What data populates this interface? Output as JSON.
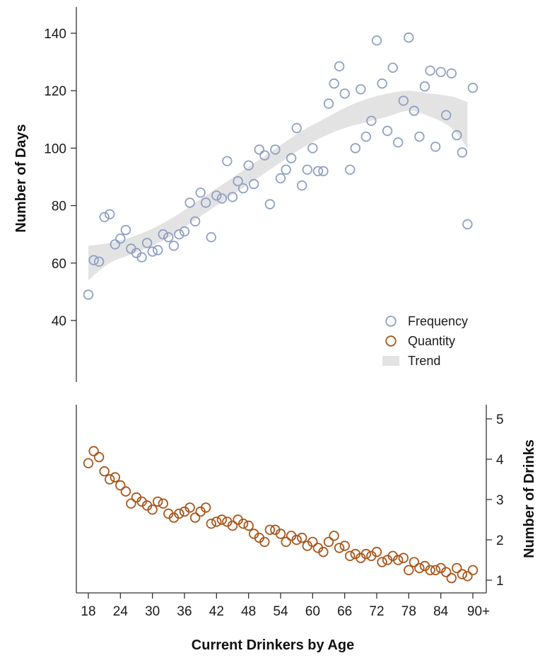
{
  "chart_data": {
    "type": "scatter",
    "xlabel": "Current Drinkers by Age",
    "x_range": [
      18,
      90
    ],
    "x_ticks": [
      {
        "value": 18,
        "label": "18"
      },
      {
        "value": 24,
        "label": "24"
      },
      {
        "value": 30,
        "label": "30"
      },
      {
        "value": 36,
        "label": "36"
      },
      {
        "value": 42,
        "label": "42"
      },
      {
        "value": 48,
        "label": "48"
      },
      {
        "value": 54,
        "label": "54"
      },
      {
        "value": 60,
        "label": "60"
      },
      {
        "value": 66,
        "label": "66"
      },
      {
        "value": 72,
        "label": "72"
      },
      {
        "value": 78,
        "label": "78"
      },
      {
        "value": 84,
        "label": "84"
      },
      {
        "value": 90,
        "label": "90+"
      }
    ],
    "y_left": {
      "label": "Number of Days",
      "ticks": [
        40,
        60,
        80,
        100,
        120,
        140
      ],
      "range": [
        40,
        140
      ]
    },
    "y_right": {
      "label": "Number of Drinks",
      "ticks": [
        1,
        2,
        3,
        4,
        5
      ],
      "range": [
        1,
        5
      ]
    },
    "legend": {
      "position": "right-middle",
      "entries": [
        {
          "label": "Frequency",
          "marker": "circle",
          "color": "#8fa0c4"
        },
        {
          "label": "Quantity",
          "marker": "circle",
          "color": "#a8551a"
        },
        {
          "label": "Trend",
          "marker": "band",
          "color": "#e3e3e3"
        }
      ]
    },
    "series": [
      {
        "name": "Frequency",
        "axis": "left",
        "color": "#8fa0c4",
        "points": [
          [
            18,
            49
          ],
          [
            19,
            61
          ],
          [
            20,
            60.5
          ],
          [
            21,
            76
          ],
          [
            22,
            77
          ],
          [
            23,
            66.5
          ],
          [
            24,
            68.5
          ],
          [
            25,
            71.5
          ],
          [
            26,
            65
          ],
          [
            27,
            63.5
          ],
          [
            28,
            62
          ],
          [
            29,
            67
          ],
          [
            30,
            64
          ],
          [
            31,
            64.5
          ],
          [
            32,
            70
          ],
          [
            33,
            69
          ],
          [
            34,
            66
          ],
          [
            35,
            70
          ],
          [
            36,
            71
          ],
          [
            37,
            81
          ],
          [
            38,
            74.5
          ],
          [
            39,
            84.5
          ],
          [
            40,
            81
          ],
          [
            41,
            69
          ],
          [
            42,
            83.5
          ],
          [
            43,
            82.5
          ],
          [
            44,
            95.5
          ],
          [
            45,
            83
          ],
          [
            46,
            88.5
          ],
          [
            47,
            86
          ],
          [
            48,
            94
          ],
          [
            49,
            87.5
          ],
          [
            50,
            99.5
          ],
          [
            51,
            97.5
          ],
          [
            52,
            80.5
          ],
          [
            53,
            99.5
          ],
          [
            54,
            89.5
          ],
          [
            55,
            92.5
          ],
          [
            56,
            96.5
          ],
          [
            57,
            107
          ],
          [
            58,
            87
          ],
          [
            59,
            92.5
          ],
          [
            60,
            100
          ],
          [
            61,
            92
          ],
          [
            62,
            92
          ],
          [
            63,
            115.5
          ],
          [
            64,
            122.5
          ],
          [
            65,
            128.5
          ],
          [
            66,
            119
          ],
          [
            67,
            92.5
          ],
          [
            68,
            100
          ],
          [
            69,
            120.5
          ],
          [
            70,
            104
          ],
          [
            71,
            109.5
          ],
          [
            72,
            137.5
          ],
          [
            73,
            122.5
          ],
          [
            74,
            106
          ],
          [
            75,
            128
          ],
          [
            76,
            102
          ],
          [
            77,
            116.5
          ],
          [
            78,
            138.5
          ],
          [
            79,
            113
          ],
          [
            80,
            104
          ],
          [
            81,
            121.5
          ],
          [
            82,
            127
          ],
          [
            83,
            100.5
          ],
          [
            84,
            126.5
          ],
          [
            85,
            111.5
          ],
          [
            86,
            126
          ],
          [
            87,
            104.5
          ],
          [
            88,
            98.5
          ],
          [
            89,
            73.5
          ],
          [
            90,
            121
          ]
        ]
      },
      {
        "name": "Quantity",
        "axis": "right",
        "color": "#a8551a",
        "points": [
          [
            18,
            3.9
          ],
          [
            19,
            4.2
          ],
          [
            20,
            4.05
          ],
          [
            21,
            3.7
          ],
          [
            22,
            3.5
          ],
          [
            23,
            3.55
          ],
          [
            24,
            3.35
          ],
          [
            25,
            3.2
          ],
          [
            26,
            2.9
          ],
          [
            27,
            3.05
          ],
          [
            28,
            2.95
          ],
          [
            29,
            2.85
          ],
          [
            30,
            2.75
          ],
          [
            31,
            2.95
          ],
          [
            32,
            2.9
          ],
          [
            33,
            2.65
          ],
          [
            34,
            2.55
          ],
          [
            35,
            2.65
          ],
          [
            36,
            2.7
          ],
          [
            37,
            2.8
          ],
          [
            38,
            2.55
          ],
          [
            39,
            2.7
          ],
          [
            40,
            2.8
          ],
          [
            41,
            2.4
          ],
          [
            42,
            2.45
          ],
          [
            43,
            2.5
          ],
          [
            44,
            2.45
          ],
          [
            45,
            2.35
          ],
          [
            46,
            2.5
          ],
          [
            47,
            2.4
          ],
          [
            48,
            2.35
          ],
          [
            49,
            2.15
          ],
          [
            50,
            2.05
          ],
          [
            51,
            1.95
          ],
          [
            52,
            2.25
          ],
          [
            53,
            2.25
          ],
          [
            54,
            2.15
          ],
          [
            55,
            1.95
          ],
          [
            56,
            2.1
          ],
          [
            57,
            2.0
          ],
          [
            58,
            2.05
          ],
          [
            59,
            1.85
          ],
          [
            60,
            1.95
          ],
          [
            61,
            1.8
          ],
          [
            62,
            1.7
          ],
          [
            63,
            1.95
          ],
          [
            64,
            2.1
          ],
          [
            65,
            1.8
          ],
          [
            66,
            1.85
          ],
          [
            67,
            1.6
          ],
          [
            68,
            1.65
          ],
          [
            69,
            1.55
          ],
          [
            70,
            1.65
          ],
          [
            71,
            1.6
          ],
          [
            72,
            1.7
          ],
          [
            73,
            1.45
          ],
          [
            74,
            1.5
          ],
          [
            75,
            1.6
          ],
          [
            76,
            1.5
          ],
          [
            77,
            1.55
          ],
          [
            78,
            1.25
          ],
          [
            79,
            1.45
          ],
          [
            80,
            1.3
          ],
          [
            81,
            1.35
          ],
          [
            82,
            1.25
          ],
          [
            83,
            1.25
          ],
          [
            84,
            1.3
          ],
          [
            85,
            1.2
          ],
          [
            86,
            1.05
          ],
          [
            87,
            1.3
          ],
          [
            88,
            1.15
          ],
          [
            89,
            1.1
          ],
          [
            90,
            1.25
          ]
        ]
      },
      {
        "name": "Trend",
        "axis": "left",
        "type": "band",
        "color": "#e3e3e3",
        "upper": [
          [
            18,
            66
          ],
          [
            22,
            67
          ],
          [
            26,
            69
          ],
          [
            30,
            72
          ],
          [
            34,
            76
          ],
          [
            38,
            81
          ],
          [
            42,
            86
          ],
          [
            46,
            91
          ],
          [
            50,
            96
          ],
          [
            54,
            101
          ],
          [
            58,
            106
          ],
          [
            62,
            110
          ],
          [
            66,
            114
          ],
          [
            70,
            117
          ],
          [
            74,
            119
          ],
          [
            78,
            120
          ],
          [
            82,
            119
          ],
          [
            86,
            118
          ],
          [
            89,
            116
          ]
        ],
        "lower": [
          [
            18,
            54
          ],
          [
            22,
            60
          ],
          [
            26,
            63
          ],
          [
            30,
            66
          ],
          [
            34,
            70
          ],
          [
            38,
            75
          ],
          [
            42,
            80
          ],
          [
            46,
            85
          ],
          [
            50,
            90
          ],
          [
            54,
            95
          ],
          [
            58,
            100
          ],
          [
            62,
            104
          ],
          [
            66,
            107
          ],
          [
            70,
            109
          ],
          [
            74,
            111
          ],
          [
            78,
            113
          ],
          [
            82,
            111
          ],
          [
            86,
            107
          ],
          [
            89,
            100
          ]
        ]
      }
    ]
  }
}
